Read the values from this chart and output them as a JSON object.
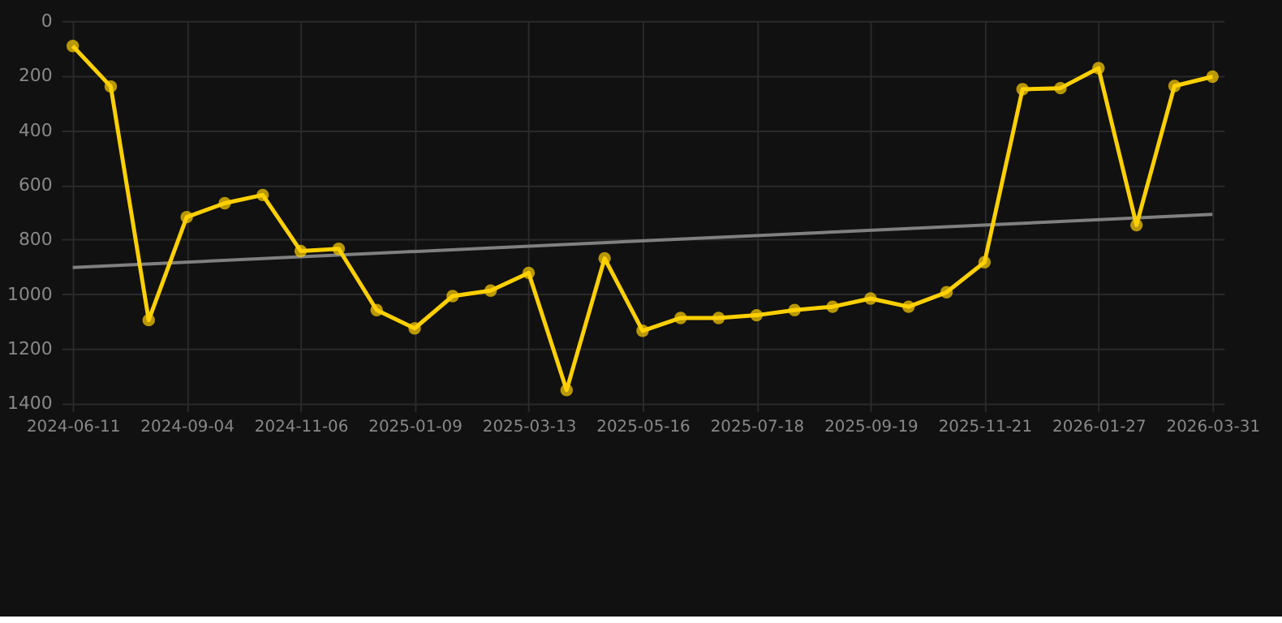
{
  "chart_data": {
    "type": "line",
    "categories": [
      "2024-06-11",
      null,
      null,
      "2024-09-04",
      null,
      null,
      "2024-11-06",
      null,
      null,
      "2025-01-09",
      null,
      null,
      "2025-03-13",
      null,
      null,
      "2025-05-16",
      null,
      null,
      "2025-07-18",
      null,
      null,
      "2025-09-19",
      null,
      null,
      "2025-11-21",
      null,
      null,
      "2026-01-27",
      null,
      null,
      "2026-03-31"
    ],
    "series": [
      {
        "color": "#ffd000",
        "marker": "circle",
        "values": [
          92,
          240,
          1095,
          718,
          667,
          637,
          842,
          834,
          1058,
          1125,
          1007,
          987,
          922,
          1351,
          869,
          1134,
          1087,
          1087,
          1077,
          1058,
          1046,
          1016,
          1046,
          993,
          883,
          250,
          246,
          173,
          747,
          238,
          204
        ]
      },
      {
        "type": "line",
        "color": "#808080",
        "marker": "none",
        "values": [
          902,
          null,
          null,
          null,
          null,
          null,
          null,
          null,
          null,
          null,
          null,
          null,
          null,
          null,
          null,
          null,
          null,
          null,
          null,
          null,
          null,
          null,
          null,
          null,
          null,
          null,
          null,
          null,
          null,
          null,
          708
        ]
      }
    ],
    "ylim": [
      1400,
      0
    ],
    "yticks": [
      0,
      200,
      400,
      600,
      800,
      1000,
      1200,
      1400
    ],
    "grid": true
  }
}
